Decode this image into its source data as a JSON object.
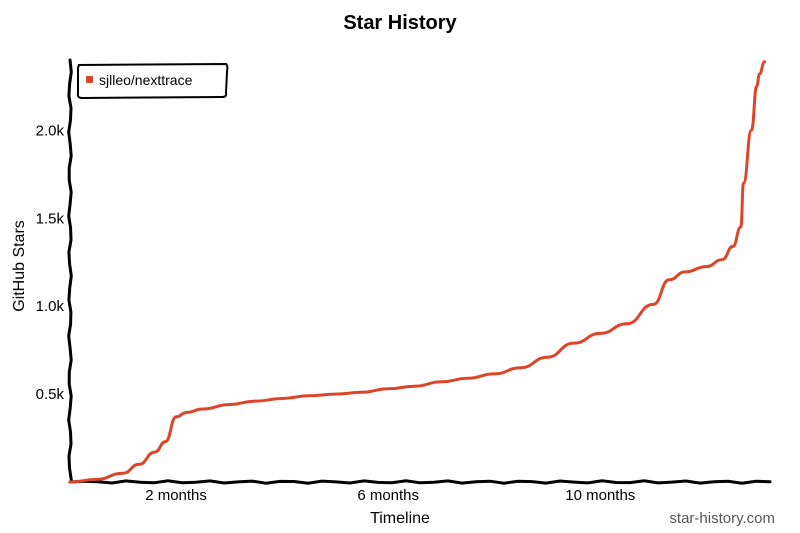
{
  "chart_data": {
    "type": "line",
    "title": "Star History",
    "xlabel": "Timeline",
    "ylabel": "GitHub Stars",
    "watermark": "star-history.com",
    "x_unit": "months",
    "xlim": [
      0,
      13.2
    ],
    "ylim": [
      0,
      2400
    ],
    "x_ticks": [
      {
        "value": 2,
        "label": "2 months"
      },
      {
        "value": 6,
        "label": "6 months"
      },
      {
        "value": 10,
        "label": "10 months"
      }
    ],
    "y_ticks": [
      {
        "value": 500,
        "label": "0.5k"
      },
      {
        "value": 1000,
        "label": "1.0k"
      },
      {
        "value": 1500,
        "label": "1.5k"
      },
      {
        "value": 2000,
        "label": "2.0k"
      }
    ],
    "grid": false,
    "legend_position": "top-left",
    "series": [
      {
        "name": "sjlleo/nexttrace",
        "color": "#dd4528",
        "points": [
          [
            0,
            0
          ],
          [
            0.5,
            15
          ],
          [
            1.0,
            50
          ],
          [
            1.3,
            100
          ],
          [
            1.6,
            170
          ],
          [
            1.8,
            230
          ],
          [
            2.0,
            370
          ],
          [
            2.2,
            395
          ],
          [
            2.5,
            415
          ],
          [
            3.0,
            440
          ],
          [
            3.5,
            460
          ],
          [
            4.0,
            475
          ],
          [
            4.5,
            490
          ],
          [
            5.0,
            500
          ],
          [
            5.5,
            510
          ],
          [
            6.0,
            530
          ],
          [
            6.5,
            545
          ],
          [
            7.0,
            570
          ],
          [
            7.5,
            590
          ],
          [
            8.0,
            615
          ],
          [
            8.5,
            650
          ],
          [
            9.0,
            710
          ],
          [
            9.5,
            790
          ],
          [
            10.0,
            845
          ],
          [
            10.5,
            900
          ],
          [
            11.0,
            1010
          ],
          [
            11.3,
            1150
          ],
          [
            11.6,
            1195
          ],
          [
            12.0,
            1225
          ],
          [
            12.3,
            1265
          ],
          [
            12.5,
            1340
          ],
          [
            12.65,
            1450
          ],
          [
            12.7,
            1700
          ],
          [
            12.85,
            2000
          ],
          [
            12.95,
            2250
          ],
          [
            13.0,
            2320
          ],
          [
            13.1,
            2390
          ]
        ]
      }
    ]
  }
}
